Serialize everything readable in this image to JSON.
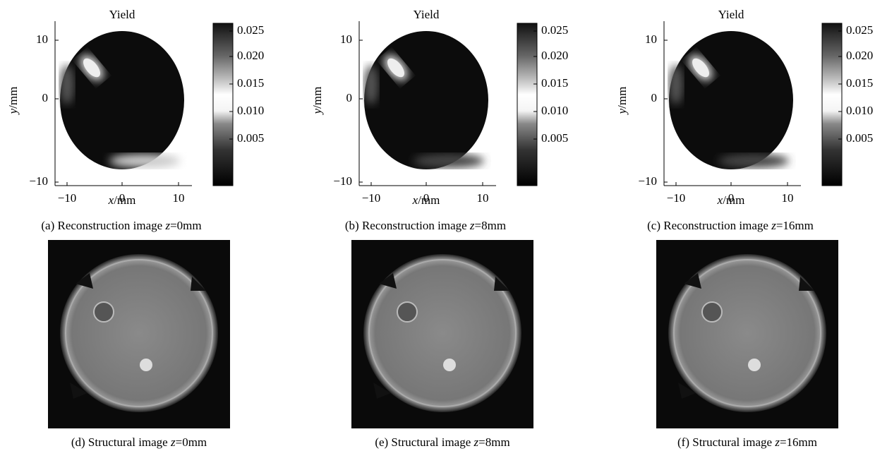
{
  "panels": [
    {
      "title": "Yield",
      "x_label": [
        "x",
        "/mm"
      ],
      "y_label": [
        "y",
        "/mm"
      ],
      "x_ticks": [
        "−10",
        "0",
        "10"
      ],
      "y_ticks": [
        "10",
        "0",
        "−10"
      ],
      "colorbar_ticks": [
        "0.025",
        "0.020",
        "0.015",
        "0.010",
        "0.005"
      ],
      "caption": [
        "(a) Reconstruction image ",
        "z",
        "=0mm"
      ]
    },
    {
      "title": "Yield",
      "x_label": [
        "x",
        "/mm"
      ],
      "y_label": [
        "y",
        "/mm"
      ],
      "x_ticks": [
        "−10",
        "0",
        "10"
      ],
      "y_ticks": [
        "10",
        "0",
        "−10"
      ],
      "colorbar_ticks": [
        "0.025",
        "0.020",
        "0.015",
        "0.010",
        "0.005"
      ],
      "caption": [
        "(b) Reconstruction image ",
        "z",
        "=8mm"
      ]
    },
    {
      "title": "Yield",
      "x_label": [
        "x",
        "/mm"
      ],
      "y_label": [
        "y",
        "/mm"
      ],
      "x_ticks": [
        "−10",
        "0",
        "10"
      ],
      "y_ticks": [
        "10",
        "0",
        "−10"
      ],
      "colorbar_ticks": [
        "0.025",
        "0.020",
        "0.015",
        "0.010",
        "0.005"
      ],
      "caption": [
        "(c) Reconstruction image ",
        "z",
        "=16mm"
      ]
    }
  ],
  "structural": [
    {
      "caption": [
        "(d) Structural image ",
        "z",
        "=0mm"
      ]
    },
    {
      "caption": [
        "(e) Structural image ",
        "z",
        "=8mm"
      ]
    },
    {
      "caption": [
        "(f) Structural image ",
        "z",
        "=16mm"
      ]
    }
  ]
}
